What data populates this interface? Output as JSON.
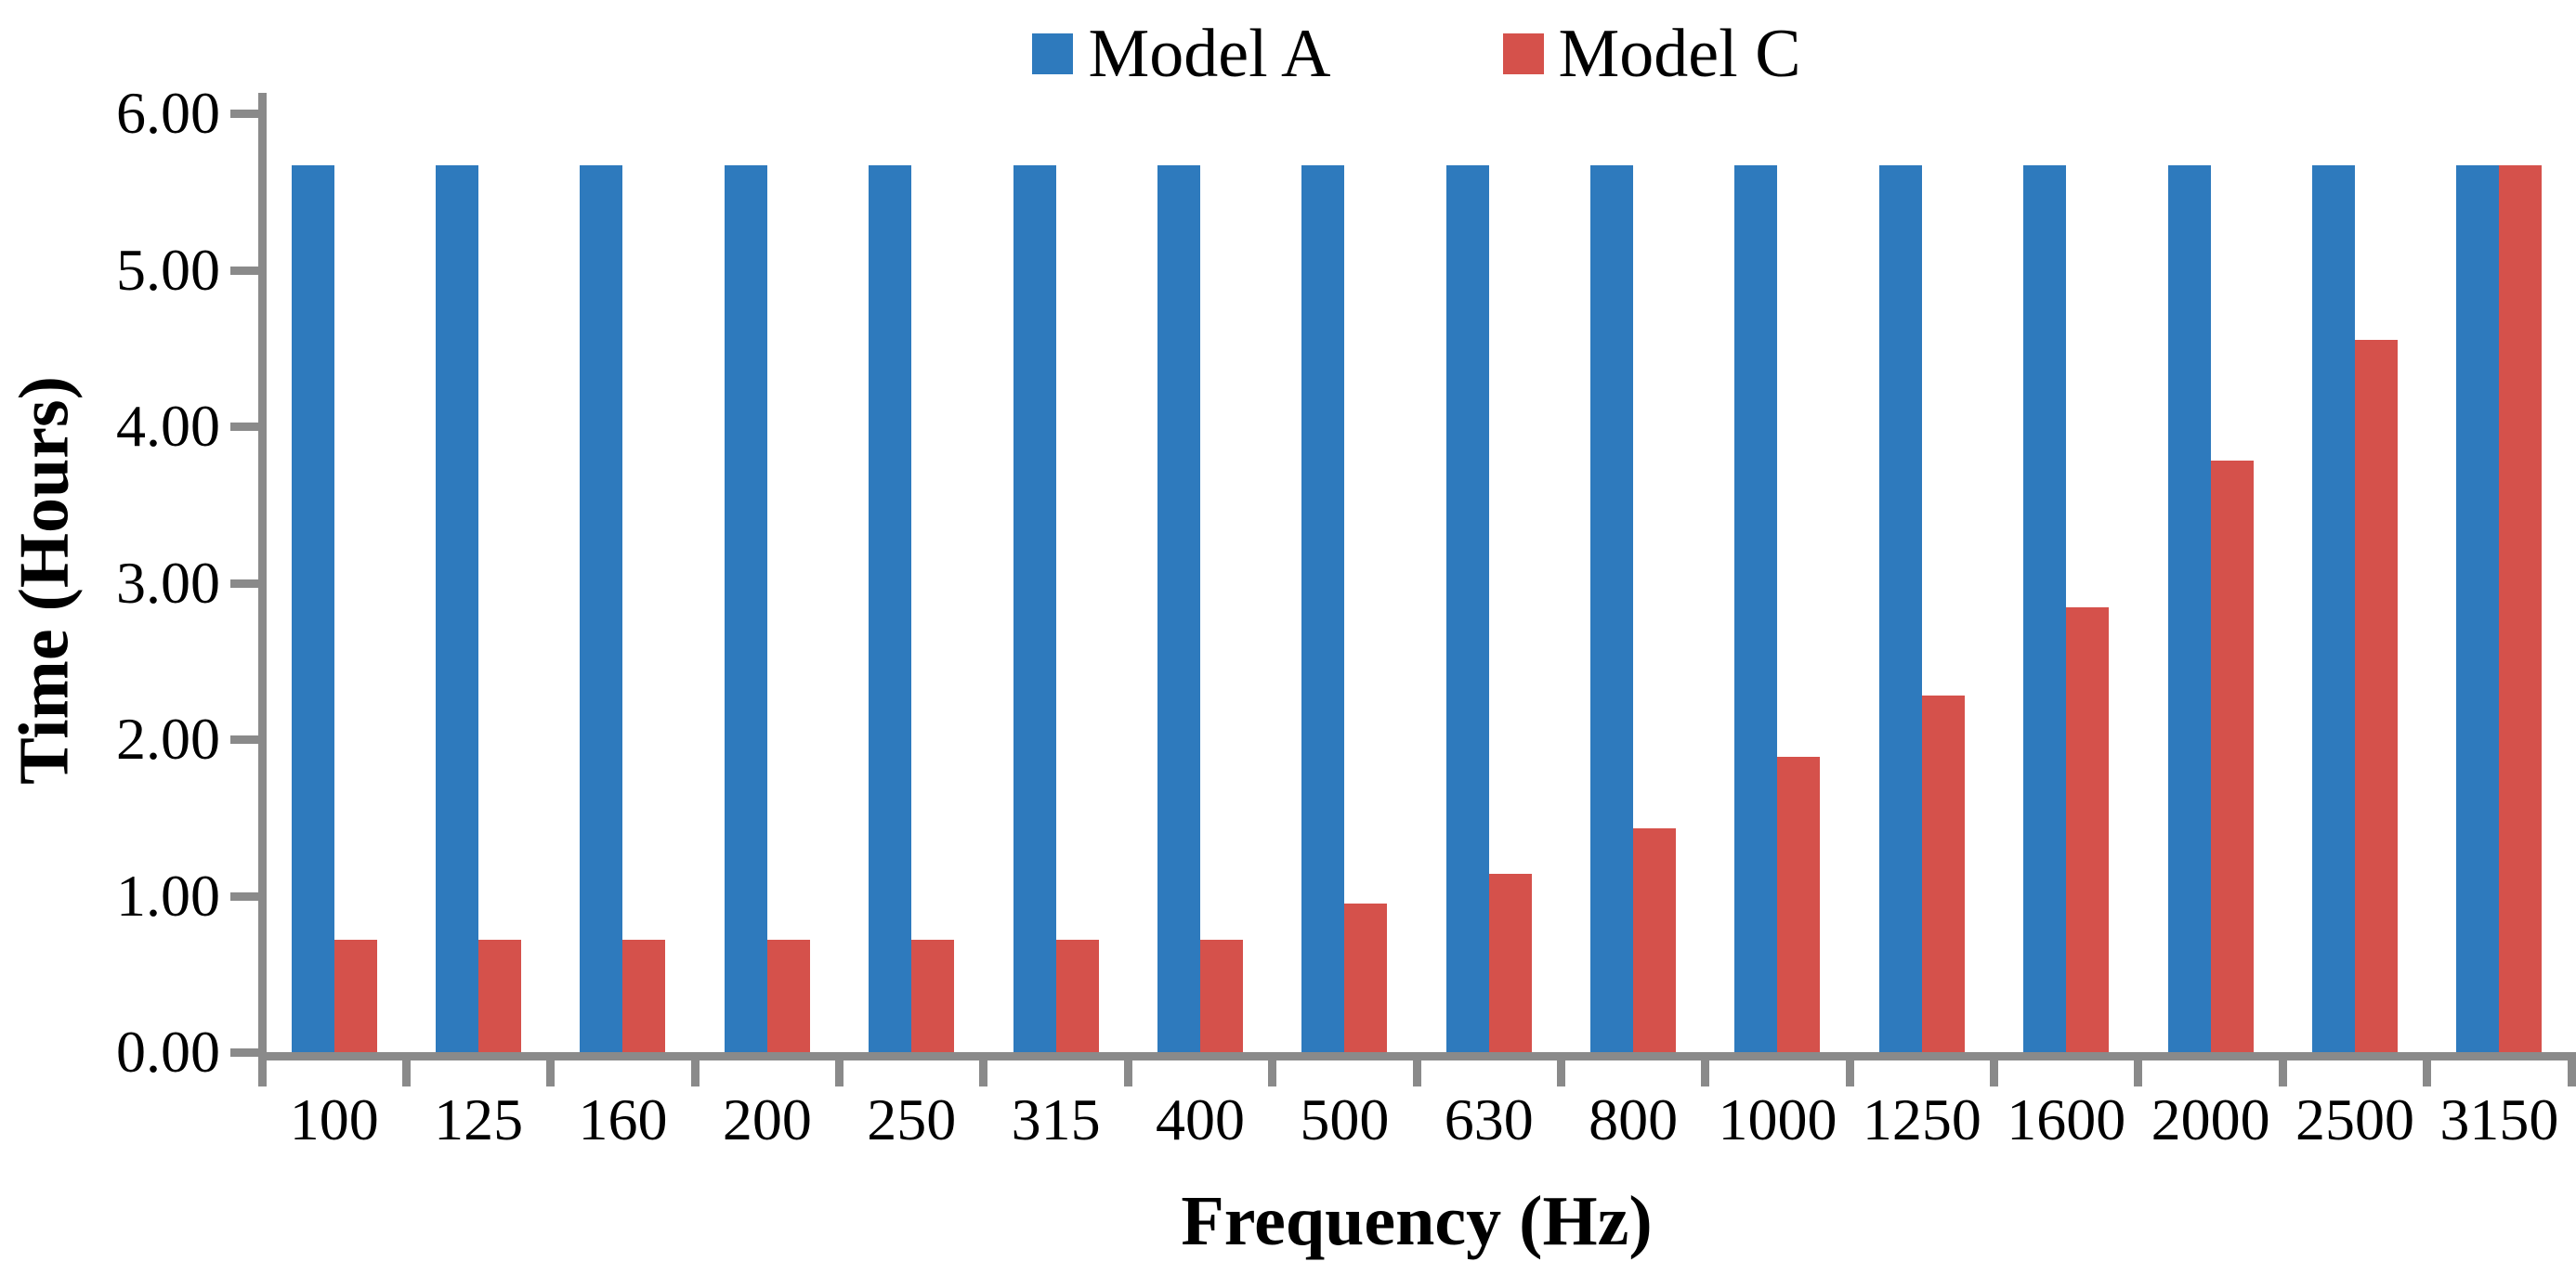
{
  "chart_data": {
    "type": "bar",
    "title": "",
    "xlabel": "Frequency (Hz)",
    "ylabel": "Time (Hours)",
    "categories": [
      "100",
      "125",
      "160",
      "200",
      "250",
      "315",
      "400",
      "500",
      "630",
      "800",
      "1000",
      "1250",
      "1600",
      "2000",
      "2500",
      "3150"
    ],
    "series": [
      {
        "name": "Model A",
        "color": "#2E7ABD",
        "values": [
          5.67,
          5.67,
          5.67,
          5.67,
          5.67,
          5.67,
          5.67,
          5.67,
          5.67,
          5.67,
          5.67,
          5.67,
          5.67,
          5.67,
          5.67,
          5.67
        ]
      },
      {
        "name": "Model C",
        "color": "#D5514B",
        "values": [
          0.72,
          0.72,
          0.72,
          0.72,
          0.72,
          0.72,
          0.72,
          0.95,
          1.14,
          1.43,
          1.89,
          2.28,
          2.84,
          3.78,
          4.55,
          5.67
        ]
      }
    ],
    "ylim": [
      0,
      6
    ],
    "ytick_labels": [
      "0.00",
      "1.00",
      "2.00",
      "3.00",
      "4.00",
      "5.00",
      "6.00"
    ],
    "legend_position": "top",
    "grid": false,
    "axis_color": "#8A8A8A",
    "text_color": "#000000"
  }
}
